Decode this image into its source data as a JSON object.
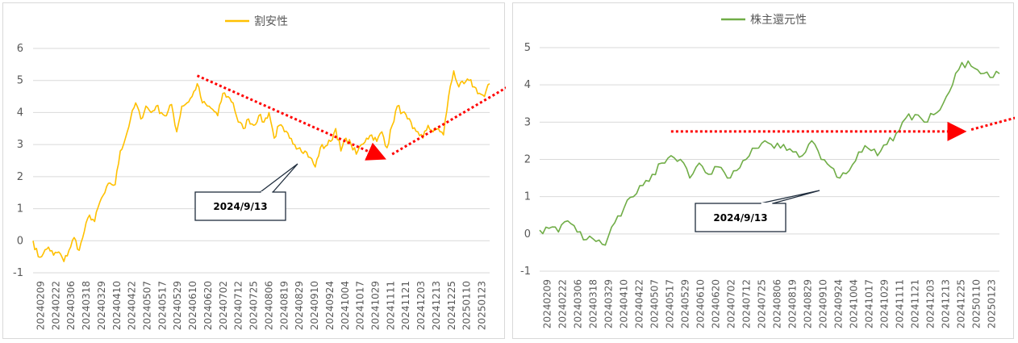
{
  "chart_data": [
    {
      "type": "line",
      "series": [
        {
          "name": "割安性",
          "color": "#FFC000"
        }
      ],
      "ylim": [
        -1,
        6
      ],
      "yticks": [
        -1,
        0,
        1,
        2,
        3,
        4,
        5,
        6
      ],
      "categories": [
        "20240209",
        "20240222",
        "20240306",
        "20240318",
        "20240329",
        "20240410",
        "20240422",
        "20240507",
        "20240517",
        "20240529",
        "20240610",
        "20240620",
        "20240702",
        "20240712",
        "20240725",
        "20240806",
        "20240819",
        "20240829",
        "20240910",
        "20240924",
        "20241004",
        "20241017",
        "20241029",
        "20241111",
        "20241121",
        "20241203",
        "20241213",
        "20241225",
        "20250110",
        "20250123"
      ],
      "grid": true,
      "legend": "top",
      "anchors": [
        [
          0,
          0.0
        ],
        [
          1,
          -0.5
        ],
        [
          2,
          -0.4
        ],
        [
          3,
          -0.2
        ],
        [
          4,
          -0.45
        ],
        [
          5,
          -0.35
        ],
        [
          6,
          -0.65
        ],
        [
          7,
          -0.3
        ],
        [
          8,
          0.1
        ],
        [
          9,
          -0.3
        ],
        [
          10,
          0.3
        ],
        [
          11,
          0.8
        ],
        [
          12,
          0.6
        ],
        [
          13,
          1.2
        ],
        [
          14,
          1.5
        ],
        [
          15,
          1.8
        ],
        [
          16,
          1.75
        ],
        [
          17,
          2.8
        ],
        [
          18,
          3.2
        ],
        [
          19,
          3.8
        ],
        [
          20,
          4.3
        ],
        [
          21,
          3.8
        ],
        [
          22,
          4.2
        ],
        [
          23,
          4.0
        ],
        [
          24,
          4.2
        ],
        [
          25,
          4.0
        ],
        [
          26,
          3.9
        ],
        [
          27,
          4.25
        ],
        [
          28,
          3.4
        ],
        [
          29,
          4.2
        ],
        [
          30,
          4.3
        ],
        [
          31,
          4.5
        ],
        [
          32,
          4.9
        ],
        [
          33,
          4.3
        ],
        [
          34,
          4.2
        ],
        [
          35,
          4.1
        ],
        [
          36,
          3.9
        ],
        [
          37,
          4.6
        ],
        [
          38,
          4.5
        ],
        [
          39,
          4.3
        ],
        [
          40,
          3.7
        ],
        [
          41,
          3.5
        ],
        [
          42,
          3.8
        ],
        [
          43,
          3.6
        ],
        [
          44,
          3.9
        ],
        [
          45,
          3.7
        ],
        [
          46,
          4.0
        ],
        [
          47,
          3.2
        ],
        [
          48,
          3.6
        ],
        [
          49,
          3.4
        ],
        [
          50,
          3.2
        ],
        [
          51,
          3.0
        ],
        [
          52,
          2.9
        ],
        [
          53,
          2.8
        ],
        [
          54,
          2.6
        ],
        [
          55,
          2.3
        ],
        [
          56,
          2.9
        ],
        [
          57,
          2.95
        ],
        [
          58,
          3.1
        ],
        [
          59,
          3.5
        ],
        [
          60,
          2.8
        ],
        [
          61,
          3.2
        ],
        [
          62,
          3.0
        ],
        [
          63,
          2.7
        ],
        [
          64,
          3.0
        ],
        [
          65,
          3.2
        ],
        [
          66,
          3.3
        ],
        [
          67,
          3.1
        ],
        [
          68,
          3.4
        ],
        [
          69,
          2.9
        ],
        [
          70,
          3.6
        ],
        [
          71,
          4.2
        ],
        [
          72,
          4.0
        ],
        [
          73,
          3.8
        ],
        [
          74,
          3.5
        ],
        [
          75,
          3.4
        ],
        [
          76,
          3.2
        ],
        [
          77,
          3.6
        ],
        [
          78,
          3.4
        ],
        [
          79,
          3.5
        ],
        [
          80,
          3.3
        ],
        [
          81,
          4.5
        ],
        [
          82,
          5.3
        ],
        [
          83,
          4.8
        ],
        [
          84,
          4.9
        ],
        [
          85,
          5.0
        ],
        [
          86,
          4.8
        ],
        [
          87,
          4.6
        ],
        [
          88,
          4.5
        ],
        [
          89,
          4.9
        ]
      ],
      "markers": [
        {
          "type": "arrow",
          "from": [
            32,
            5.15
          ],
          "to": [
            68,
            2.6
          ]
        },
        {
          "type": "arrow",
          "from": [
            70,
            2.7
          ],
          "to": [
            100,
            5.5
          ]
        },
        {
          "type": "arrow",
          "from": [
            101,
            5.55
          ],
          "to": [
            110,
            5.25
          ]
        }
      ],
      "callout": {
        "text": "2024/9/13",
        "point_category": "20240910"
      }
    },
    {
      "type": "line",
      "series": [
        {
          "name": "株主還元性",
          "color": "#70AD47"
        }
      ],
      "ylim": [
        -1,
        5
      ],
      "yticks": [
        -1,
        0,
        1,
        2,
        3,
        4,
        5
      ],
      "categories": [
        "20240209",
        "20240222",
        "20240306",
        "20240318",
        "20240329",
        "20240410",
        "20240422",
        "20240507",
        "20240517",
        "20240529",
        "20240610",
        "20240620",
        "20240702",
        "20240712",
        "20240725",
        "20240806",
        "20240819",
        "20240829",
        "20240910",
        "20240924",
        "20241004",
        "20241017",
        "20241029",
        "20241111",
        "20241121",
        "20241203",
        "20241213",
        "20241225",
        "20250110",
        "20250123"
      ],
      "grid": true,
      "legend": "top",
      "anchors": [
        [
          0,
          0.1
        ],
        [
          1,
          0.15
        ],
        [
          2,
          0.05
        ],
        [
          3,
          0.35
        ],
        [
          4,
          0.05
        ],
        [
          5,
          -0.15
        ],
        [
          6,
          -0.2
        ],
        [
          7,
          -0.3
        ],
        [
          8,
          0.3
        ],
        [
          9,
          0.7
        ],
        [
          10,
          1.0
        ],
        [
          11,
          1.3
        ],
        [
          12,
          1.6
        ],
        [
          13,
          1.9
        ],
        [
          14,
          2.1
        ],
        [
          15,
          2.0
        ],
        [
          16,
          1.5
        ],
        [
          17,
          1.9
        ],
        [
          18,
          1.6
        ],
        [
          19,
          1.8
        ],
        [
          20,
          1.5
        ],
        [
          21,
          1.7
        ],
        [
          22,
          2.0
        ],
        [
          23,
          2.3
        ],
        [
          24,
          2.5
        ],
        [
          25,
          2.3
        ],
        [
          26,
          2.4
        ],
        [
          27,
          2.2
        ],
        [
          28,
          2.1
        ],
        [
          29,
          2.5
        ],
        [
          30,
          2.0
        ],
        [
          31,
          1.8
        ],
        [
          32,
          1.5
        ],
        [
          33,
          1.7
        ],
        [
          34,
          2.2
        ],
        [
          35,
          2.3
        ],
        [
          36,
          2.1
        ],
        [
          37,
          2.4
        ],
        [
          38,
          2.7
        ],
        [
          39,
          3.1
        ],
        [
          40,
          3.2
        ],
        [
          41,
          3.0
        ],
        [
          42,
          3.2
        ],
        [
          43,
          3.5
        ],
        [
          44,
          4.0
        ],
        [
          45,
          4.6
        ],
        [
          46,
          4.5
        ],
        [
          47,
          4.3
        ],
        [
          48,
          4.2
        ],
        [
          49,
          4.3
        ]
      ],
      "markers": [
        {
          "type": "arrow",
          "from": [
            14,
            2.75
          ],
          "to": [
            45,
            2.75
          ]
        },
        {
          "type": "arrow",
          "from": [
            46,
            2.8
          ],
          "to": [
            75,
            4.75
          ]
        },
        {
          "type": "arrow",
          "from": [
            75,
            4.85
          ],
          "to": [
            86,
            4.45
          ]
        }
      ],
      "callout": {
        "text": "2024/9/13",
        "point_category": "20240910"
      }
    }
  ]
}
